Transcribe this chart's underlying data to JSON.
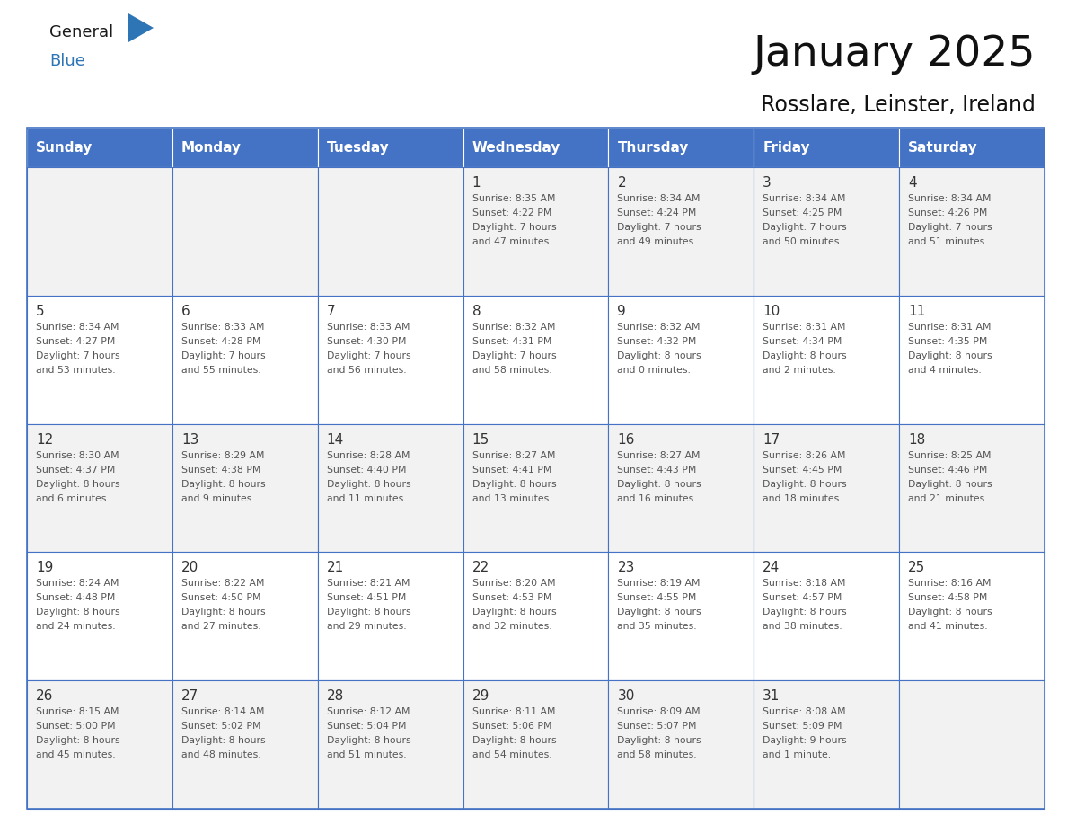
{
  "title": "January 2025",
  "subtitle": "Rosslare, Leinster, Ireland",
  "header_color": "#4472C4",
  "header_text_color": "#FFFFFF",
  "cell_bg_even": "#F2F2F2",
  "cell_bg_odd": "#FFFFFF",
  "grid_line_color": "#4472C4",
  "day_number_color": "#333333",
  "cell_text_color": "#555555",
  "days_of_week": [
    "Sunday",
    "Monday",
    "Tuesday",
    "Wednesday",
    "Thursday",
    "Friday",
    "Saturday"
  ],
  "weeks": [
    [
      {
        "day": null,
        "sunrise": null,
        "sunset": null,
        "daylight": null
      },
      {
        "day": null,
        "sunrise": null,
        "sunset": null,
        "daylight": null
      },
      {
        "day": null,
        "sunrise": null,
        "sunset": null,
        "daylight": null
      },
      {
        "day": 1,
        "sunrise": "8:35 AM",
        "sunset": "4:22 PM",
        "daylight": "7 hours\nand 47 minutes."
      },
      {
        "day": 2,
        "sunrise": "8:34 AM",
        "sunset": "4:24 PM",
        "daylight": "7 hours\nand 49 minutes."
      },
      {
        "day": 3,
        "sunrise": "8:34 AM",
        "sunset": "4:25 PM",
        "daylight": "7 hours\nand 50 minutes."
      },
      {
        "day": 4,
        "sunrise": "8:34 AM",
        "sunset": "4:26 PM",
        "daylight": "7 hours\nand 51 minutes."
      }
    ],
    [
      {
        "day": 5,
        "sunrise": "8:34 AM",
        "sunset": "4:27 PM",
        "daylight": "7 hours\nand 53 minutes."
      },
      {
        "day": 6,
        "sunrise": "8:33 AM",
        "sunset": "4:28 PM",
        "daylight": "7 hours\nand 55 minutes."
      },
      {
        "day": 7,
        "sunrise": "8:33 AM",
        "sunset": "4:30 PM",
        "daylight": "7 hours\nand 56 minutes."
      },
      {
        "day": 8,
        "sunrise": "8:32 AM",
        "sunset": "4:31 PM",
        "daylight": "7 hours\nand 58 minutes."
      },
      {
        "day": 9,
        "sunrise": "8:32 AM",
        "sunset": "4:32 PM",
        "daylight": "8 hours\nand 0 minutes."
      },
      {
        "day": 10,
        "sunrise": "8:31 AM",
        "sunset": "4:34 PM",
        "daylight": "8 hours\nand 2 minutes."
      },
      {
        "day": 11,
        "sunrise": "8:31 AM",
        "sunset": "4:35 PM",
        "daylight": "8 hours\nand 4 minutes."
      }
    ],
    [
      {
        "day": 12,
        "sunrise": "8:30 AM",
        "sunset": "4:37 PM",
        "daylight": "8 hours\nand 6 minutes."
      },
      {
        "day": 13,
        "sunrise": "8:29 AM",
        "sunset": "4:38 PM",
        "daylight": "8 hours\nand 9 minutes."
      },
      {
        "day": 14,
        "sunrise": "8:28 AM",
        "sunset": "4:40 PM",
        "daylight": "8 hours\nand 11 minutes."
      },
      {
        "day": 15,
        "sunrise": "8:27 AM",
        "sunset": "4:41 PM",
        "daylight": "8 hours\nand 13 minutes."
      },
      {
        "day": 16,
        "sunrise": "8:27 AM",
        "sunset": "4:43 PM",
        "daylight": "8 hours\nand 16 minutes."
      },
      {
        "day": 17,
        "sunrise": "8:26 AM",
        "sunset": "4:45 PM",
        "daylight": "8 hours\nand 18 minutes."
      },
      {
        "day": 18,
        "sunrise": "8:25 AM",
        "sunset": "4:46 PM",
        "daylight": "8 hours\nand 21 minutes."
      }
    ],
    [
      {
        "day": 19,
        "sunrise": "8:24 AM",
        "sunset": "4:48 PM",
        "daylight": "8 hours\nand 24 minutes."
      },
      {
        "day": 20,
        "sunrise": "8:22 AM",
        "sunset": "4:50 PM",
        "daylight": "8 hours\nand 27 minutes."
      },
      {
        "day": 21,
        "sunrise": "8:21 AM",
        "sunset": "4:51 PM",
        "daylight": "8 hours\nand 29 minutes."
      },
      {
        "day": 22,
        "sunrise": "8:20 AM",
        "sunset": "4:53 PM",
        "daylight": "8 hours\nand 32 minutes."
      },
      {
        "day": 23,
        "sunrise": "8:19 AM",
        "sunset": "4:55 PM",
        "daylight": "8 hours\nand 35 minutes."
      },
      {
        "day": 24,
        "sunrise": "8:18 AM",
        "sunset": "4:57 PM",
        "daylight": "8 hours\nand 38 minutes."
      },
      {
        "day": 25,
        "sunrise": "8:16 AM",
        "sunset": "4:58 PM",
        "daylight": "8 hours\nand 41 minutes."
      }
    ],
    [
      {
        "day": 26,
        "sunrise": "8:15 AM",
        "sunset": "5:00 PM",
        "daylight": "8 hours\nand 45 minutes."
      },
      {
        "day": 27,
        "sunrise": "8:14 AM",
        "sunset": "5:02 PM",
        "daylight": "8 hours\nand 48 minutes."
      },
      {
        "day": 28,
        "sunrise": "8:12 AM",
        "sunset": "5:04 PM",
        "daylight": "8 hours\nand 51 minutes."
      },
      {
        "day": 29,
        "sunrise": "8:11 AM",
        "sunset": "5:06 PM",
        "daylight": "8 hours\nand 54 minutes."
      },
      {
        "day": 30,
        "sunrise": "8:09 AM",
        "sunset": "5:07 PM",
        "daylight": "8 hours\nand 58 minutes."
      },
      {
        "day": 31,
        "sunrise": "8:08 AM",
        "sunset": "5:09 PM",
        "daylight": "9 hours\nand 1 minute."
      },
      {
        "day": null,
        "sunrise": null,
        "sunset": null,
        "daylight": null
      }
    ]
  ],
  "logo_color_general": "#1a1a1a",
  "logo_color_blue": "#2E75B6",
  "logo_triangle_color": "#2E75B6"
}
